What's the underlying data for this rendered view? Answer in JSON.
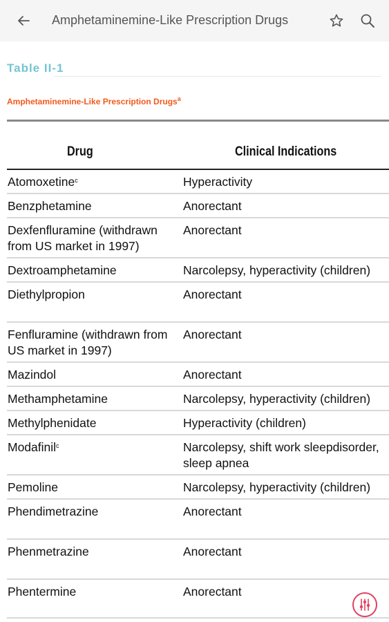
{
  "appbar": {
    "title": "Amphetaminemine-Like Prescription Drugs",
    "icons": {
      "back": "arrow-back-icon",
      "bookmark": "star-icon",
      "search": "search-icon"
    }
  },
  "table": {
    "label": "Table II-1",
    "caption": "Amphetaminemine-Like Prescription Drugs",
    "caption_sup": "a",
    "headers": {
      "drug": "Drug",
      "indications": "Clinical Indications"
    },
    "rows": [
      {
        "drug": "Atomoxetine",
        "sup": "c",
        "indication": "Hyperactivity"
      },
      {
        "drug": "Benzphetamine",
        "sup": "",
        "indication": "Anorectant"
      },
      {
        "drug": "Dexfenfluramine (withdrawn from US market in 1997)",
        "sup": "",
        "indication": "Anorectant"
      },
      {
        "drug": "Dextroamphetamine",
        "sup": "",
        "indication": "Narcolepsy, hyperactivity (children)"
      },
      {
        "drug": "Diethylpropion",
        "sup": "",
        "indication": "Anorectant"
      },
      {
        "drug": "Fenfluramine (withdrawn from US market in 1997)",
        "sup": "",
        "indication": "Anorectant"
      },
      {
        "drug": "Mazindol",
        "sup": "",
        "indication": "Anorectant"
      },
      {
        "drug": "Methamphetamine",
        "sup": "",
        "indication": "Narcolepsy, hyperactivity (children)"
      },
      {
        "drug": "Methylphenidate",
        "sup": "",
        "indication": "Hyperactivity (children)"
      },
      {
        "drug": "Modafinil",
        "sup": "c",
        "indication": "Narcolepsy, shift work sleepdisorder, sleep apnea"
      },
      {
        "drug": "Pemoline",
        "sup": "",
        "indication": "Narcolepsy, hyperactivity (children)"
      },
      {
        "drug": "Phendimetrazine",
        "sup": "",
        "indication": "Anorectant"
      },
      {
        "drug": "Phenmetrazine",
        "sup": "",
        "indication": "Anorectant"
      },
      {
        "drug": "Phentermine",
        "sup": "",
        "indication": "Anorectant"
      }
    ]
  },
  "fab": {
    "icon": "sliders-icon",
    "color": "#e04060"
  }
}
